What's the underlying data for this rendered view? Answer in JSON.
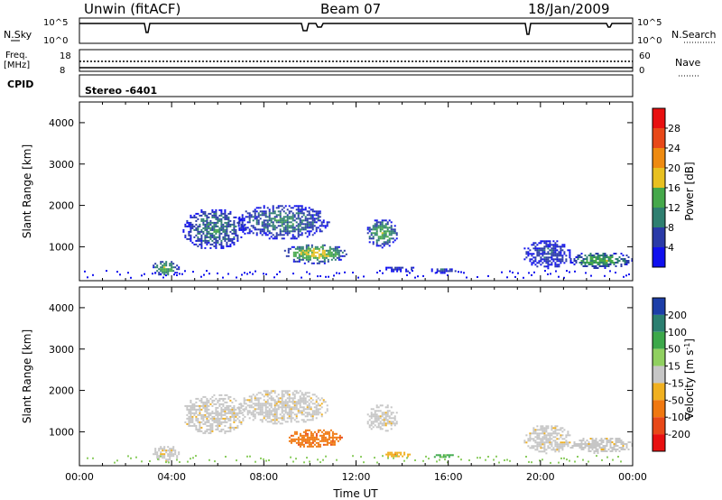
{
  "header": {
    "title": "Unwin (fitACF)",
    "beam": "Beam 07",
    "date": "18/Jan/2009"
  },
  "params": {
    "nsky_label": "N.Sky",
    "nsky_ticks": [
      "10^5",
      "10^0"
    ],
    "nsearch_label": "N.Search",
    "nsearch_ticks": [
      "10^5",
      "10^0"
    ],
    "freq_label": "Freq.",
    "freq_unit": "[MHz]",
    "freq_ticks": [
      "18",
      "8"
    ],
    "nave_label": "Nave",
    "nave_ticks": [
      "60",
      "0"
    ],
    "cpid_label": "CPID",
    "cpid_value": "Stereo -6401"
  },
  "chart_data": [
    {
      "type": "heatmap",
      "name": "power-panel",
      "ylabel": "Slant Range [km]",
      "xlabel": "",
      "xlim": [
        0,
        24
      ],
      "ylim": [
        180,
        4500
      ],
      "yticks": [
        "1000",
        "2000",
        "3000",
        "4000"
      ],
      "colorbar": {
        "label": "Power [dB]",
        "ticks": [
          "4",
          "8",
          "12",
          "16",
          "20",
          "24",
          "28"
        ],
        "colors": [
          "#1010ee",
          "#2a3aa8",
          "#2f7f70",
          "#45a84a",
          "#e8c020",
          "#ee8a10",
          "#e84818",
          "#e81010"
        ]
      },
      "regions": [
        {
          "x": [
            3.1,
            4.3
          ],
          "y": [
            300,
            700
          ],
          "level": 3
        },
        {
          "x": [
            4.4,
            7.2
          ],
          "y": [
            950,
            1950
          ],
          "level": 2
        },
        {
          "x": [
            6.8,
            10.8
          ],
          "y": [
            1200,
            2050
          ],
          "level": 2
        },
        {
          "x": [
            8.8,
            11.6
          ],
          "y": [
            600,
            1100
          ],
          "level": 4
        },
        {
          "x": [
            12.4,
            13.8
          ],
          "y": [
            1000,
            1700
          ],
          "level": 3
        },
        {
          "x": [
            13.2,
            14.6
          ],
          "y": [
            400,
            560
          ],
          "level": 1
        },
        {
          "x": [
            15.1,
            16.3
          ],
          "y": [
            380,
            520
          ],
          "level": 1
        },
        {
          "x": [
            19.2,
            21.3
          ],
          "y": [
            500,
            1200
          ],
          "level": 1
        },
        {
          "x": [
            21.2,
            24.0
          ],
          "y": [
            500,
            900
          ],
          "level": 3
        }
      ]
    },
    {
      "type": "heatmap",
      "name": "velocity-panel",
      "ylabel": "Slant Range [km]",
      "xlabel": "Time UT",
      "xlim": [
        0,
        24
      ],
      "ylim": [
        180,
        4500
      ],
      "xticks": [
        "00:00",
        "04:00",
        "08:00",
        "12:00",
        "16:00",
        "20:00",
        "00:00"
      ],
      "yticks": [
        "1000",
        "2000",
        "3000",
        "4000"
      ],
      "colorbar": {
        "label": "Velocity [m s",
        "label_sup": "-1",
        "label_end": "]",
        "ticks": [
          "200",
          "100",
          "50",
          "15",
          "-15",
          "-50",
          "-100",
          "-200"
        ],
        "colors": [
          "#1c3ea8",
          "#2b7f70",
          "#3ca84a",
          "#90d060",
          "#c6c6c6",
          "#f0b020",
          "#f07810",
          "#e84818",
          "#e81010"
        ]
      },
      "regions": [
        {
          "x": [
            3.1,
            4.3
          ],
          "y": [
            300,
            700
          ],
          "level": 4
        },
        {
          "x": [
            4.4,
            7.2
          ],
          "y": [
            950,
            1950
          ],
          "level": 4
        },
        {
          "x": [
            6.8,
            10.8
          ],
          "y": [
            1200,
            2050
          ],
          "level": 4
        },
        {
          "x": [
            9.0,
            11.4
          ],
          "y": [
            620,
            1100
          ],
          "level": 6
        },
        {
          "x": [
            12.4,
            13.8
          ],
          "y": [
            1000,
            1700
          ],
          "level": 4
        },
        {
          "x": [
            13.2,
            14.4
          ],
          "y": [
            400,
            560
          ],
          "level": 5
        },
        {
          "x": [
            15.3,
            16.2
          ],
          "y": [
            380,
            500
          ],
          "level": 2
        },
        {
          "x": [
            19.2,
            21.3
          ],
          "y": [
            500,
            1200
          ],
          "level": 4
        },
        {
          "x": [
            21.2,
            24.0
          ],
          "y": [
            500,
            900
          ],
          "level": 4
        }
      ]
    }
  ]
}
